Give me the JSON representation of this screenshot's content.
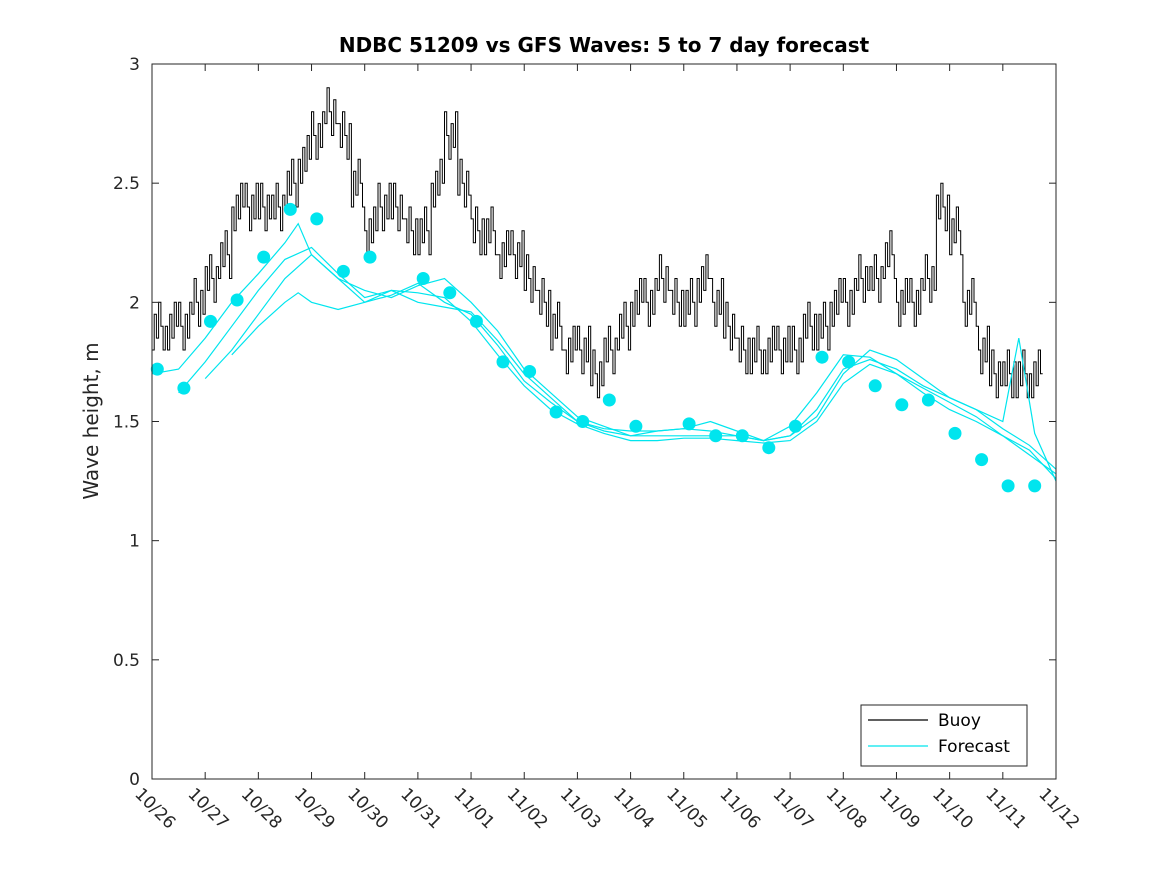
{
  "chart_data": {
    "type": "line",
    "title": "NDBC 51209 vs GFS Waves: 5 to 7 day forecast",
    "xlabel": "",
    "ylabel": "Wave height, m",
    "xlim": [
      0,
      17
    ],
    "ylim": [
      0,
      3
    ],
    "yticks": [
      0,
      0.5,
      1,
      1.5,
      2,
      2.5,
      3
    ],
    "ytick_labels": [
      "0",
      "0.5",
      "1",
      "1.5",
      "2",
      "2.5",
      "3"
    ],
    "xtick_labels": [
      "10/26",
      "10/27",
      "10/28",
      "10/29",
      "10/30",
      "10/31",
      "11/01",
      "11/02",
      "11/03",
      "11/04",
      "11/05",
      "11/06",
      "11/07",
      "11/08",
      "11/09",
      "11/10",
      "11/11",
      "11/12"
    ],
    "legend": {
      "position": "bottom-right",
      "entries": [
        {
          "label": "Buoy",
          "color": "#000000"
        },
        {
          "label": "Forecast",
          "color": "#00e5ee"
        }
      ]
    },
    "series": [
      {
        "name": "Buoy",
        "color": "#000000",
        "x": [
          0.0,
          0.25,
          0.5,
          0.75,
          1.0,
          1.25,
          1.5,
          1.75,
          2.0,
          2.25,
          2.5,
          2.75,
          3.0,
          3.25,
          3.5,
          3.75,
          4.0,
          4.25,
          4.5,
          4.75,
          5.0,
          5.25,
          5.5,
          5.75,
          6.0,
          6.25,
          6.5,
          6.75,
          7.0,
          7.25,
          7.5,
          7.75,
          8.0,
          8.25,
          8.5,
          8.75,
          9.0,
          9.25,
          9.5,
          9.75,
          10.0,
          10.25,
          10.5,
          10.75,
          11.0,
          11.25,
          11.5,
          11.75,
          12.0,
          12.25,
          12.5,
          12.75,
          13.0,
          13.25,
          13.5,
          13.75,
          14.0,
          14.25,
          14.5,
          14.75,
          15.0,
          15.25,
          15.5,
          15.75,
          16.0,
          16.25,
          16.5
        ],
        "values": [
          1.9,
          1.9,
          1.9,
          2.0,
          2.1,
          2.2,
          2.4,
          2.4,
          2.4,
          2.4,
          2.5,
          2.6,
          2.7,
          2.8,
          2.7,
          2.5,
          2.3,
          2.4,
          2.4,
          2.3,
          2.3,
          2.5,
          2.7,
          2.5,
          2.3,
          2.3,
          2.2,
          2.2,
          2.1,
          2.0,
          1.9,
          1.8,
          1.8,
          1.7,
          1.8,
          1.9,
          2.0,
          2.0,
          2.1,
          2.0,
          2.0,
          2.1,
          2.0,
          1.9,
          1.8,
          1.8,
          1.8,
          1.8,
          1.8,
          1.9,
          1.9,
          2.0,
          2.0,
          2.1,
          2.1,
          2.2,
          2.0,
          2.0,
          2.1,
          2.4,
          2.3,
          2.0,
          1.8,
          1.7,
          1.7,
          1.7,
          1.7
        ]
      },
      {
        "name": "Forecast",
        "color": "#00e5ee",
        "x": [
          0.0,
          0.5,
          1.0,
          1.5,
          2.0,
          2.5,
          2.75,
          3.0,
          3.5,
          4.0,
          4.5,
          5.0,
          5.5,
          6.0,
          6.5,
          7.0,
          7.5,
          8.0,
          8.5,
          9.0,
          9.5,
          10.0,
          10.5,
          11.0,
          11.5,
          12.0,
          12.5,
          13.0,
          13.5,
          14.0,
          14.5,
          15.0,
          15.5,
          16.0,
          16.5,
          17.0
        ],
        "values": [
          1.7,
          1.72,
          1.85,
          2.0,
          2.12,
          2.25,
          2.33,
          2.2,
          2.1,
          2.05,
          2.02,
          2.07,
          2.1,
          2.0,
          1.88,
          1.72,
          1.62,
          1.52,
          1.48,
          1.44,
          1.46,
          1.47,
          1.5,
          1.46,
          1.42,
          1.48,
          1.62,
          1.78,
          1.77,
          1.7,
          1.62,
          1.55,
          1.5,
          1.44,
          1.36,
          1.28
        ]
      },
      {
        "name": "Forecast",
        "color": "#00e5ee",
        "x": [
          0.5,
          1.0,
          1.5,
          2.0,
          2.5,
          3.0,
          3.5,
          4.0,
          4.5,
          5.0,
          5.5,
          6.0,
          6.5,
          7.0,
          7.5,
          8.0,
          8.5,
          9.0,
          9.5,
          10.0,
          10.5,
          11.0,
          11.5,
          12.0,
          12.5,
          13.0,
          13.5,
          14.0,
          14.5,
          15.0,
          15.5,
          16.0,
          16.5,
          17.0
        ],
        "values": [
          1.62,
          1.75,
          1.9,
          2.05,
          2.18,
          2.23,
          2.12,
          2.02,
          2.05,
          2.0,
          1.98,
          1.96,
          1.84,
          1.7,
          1.6,
          1.5,
          1.46,
          1.44,
          1.44,
          1.44,
          1.44,
          1.44,
          1.42,
          1.44,
          1.55,
          1.72,
          1.76,
          1.72,
          1.65,
          1.6,
          1.55,
          1.47,
          1.4,
          1.3
        ]
      },
      {
        "name": "Forecast",
        "color": "#00e5ee",
        "x": [
          1.0,
          1.5,
          2.0,
          2.5,
          3.0,
          3.5,
          4.0,
          4.5,
          5.0,
          5.5,
          6.0,
          6.5,
          7.0,
          7.5,
          8.0,
          8.5,
          9.0,
          9.5,
          10.0,
          10.5,
          11.0,
          11.5,
          12.0,
          12.5,
          13.0,
          13.5,
          14.0,
          14.5,
          15.0,
          15.5,
          16.0,
          16.5,
          17.0
        ],
        "values": [
          1.68,
          1.8,
          1.95,
          2.1,
          2.2,
          2.1,
          2.0,
          2.05,
          2.04,
          2.02,
          1.92,
          1.78,
          1.65,
          1.55,
          1.49,
          1.45,
          1.42,
          1.42,
          1.43,
          1.43,
          1.42,
          1.41,
          1.42,
          1.5,
          1.66,
          1.74,
          1.7,
          1.64,
          1.58,
          1.52,
          1.44,
          1.38,
          1.26
        ]
      },
      {
        "name": "Forecast",
        "color": "#00e5ee",
        "x": [
          1.5,
          2.0,
          2.5,
          2.75,
          3.0,
          3.5,
          4.0,
          4.5,
          5.0,
          5.5,
          6.0,
          6.5,
          7.0,
          7.5,
          8.0,
          8.5,
          9.0,
          9.5,
          10.0,
          10.5,
          11.0,
          11.5,
          12.0,
          12.5,
          13.0,
          13.5,
          14.0,
          14.5,
          15.0,
          15.5,
          16.0,
          16.3,
          16.6,
          17.0
        ],
        "values": [
          1.78,
          1.9,
          2.0,
          2.04,
          2.0,
          1.97,
          2.0,
          2.03,
          2.08,
          2.0,
          1.95,
          1.82,
          1.67,
          1.58,
          1.5,
          1.47,
          1.46,
          1.46,
          1.47,
          1.46,
          1.44,
          1.42,
          1.44,
          1.52,
          1.7,
          1.8,
          1.76,
          1.68,
          1.6,
          1.55,
          1.5,
          1.85,
          1.45,
          1.25
        ]
      }
    ],
    "markers": {
      "name": "Forecast points",
      "color": "#00e5ee",
      "x": [
        0.1,
        0.6,
        1.1,
        1.6,
        2.1,
        2.6,
        3.1,
        3.6,
        4.1,
        5.1,
        5.6,
        6.1,
        6.6,
        7.1,
        7.6,
        8.1,
        8.6,
        9.1,
        10.1,
        10.6,
        11.1,
        11.6,
        12.1,
        12.6,
        13.1,
        13.6,
        14.1,
        14.6,
        15.1,
        15.6,
        16.1,
        16.6
      ],
      "values": [
        1.72,
        1.64,
        1.92,
        2.01,
        2.19,
        2.39,
        2.35,
        2.13,
        2.19,
        2.1,
        2.04,
        1.92,
        1.75,
        1.71,
        1.54,
        1.5,
        1.59,
        1.48,
        1.49,
        1.44,
        1.44,
        1.39,
        1.48,
        1.77,
        1.75,
        1.65,
        1.57,
        1.59,
        1.45,
        1.34,
        1.23,
        1.23
      ]
    }
  }
}
